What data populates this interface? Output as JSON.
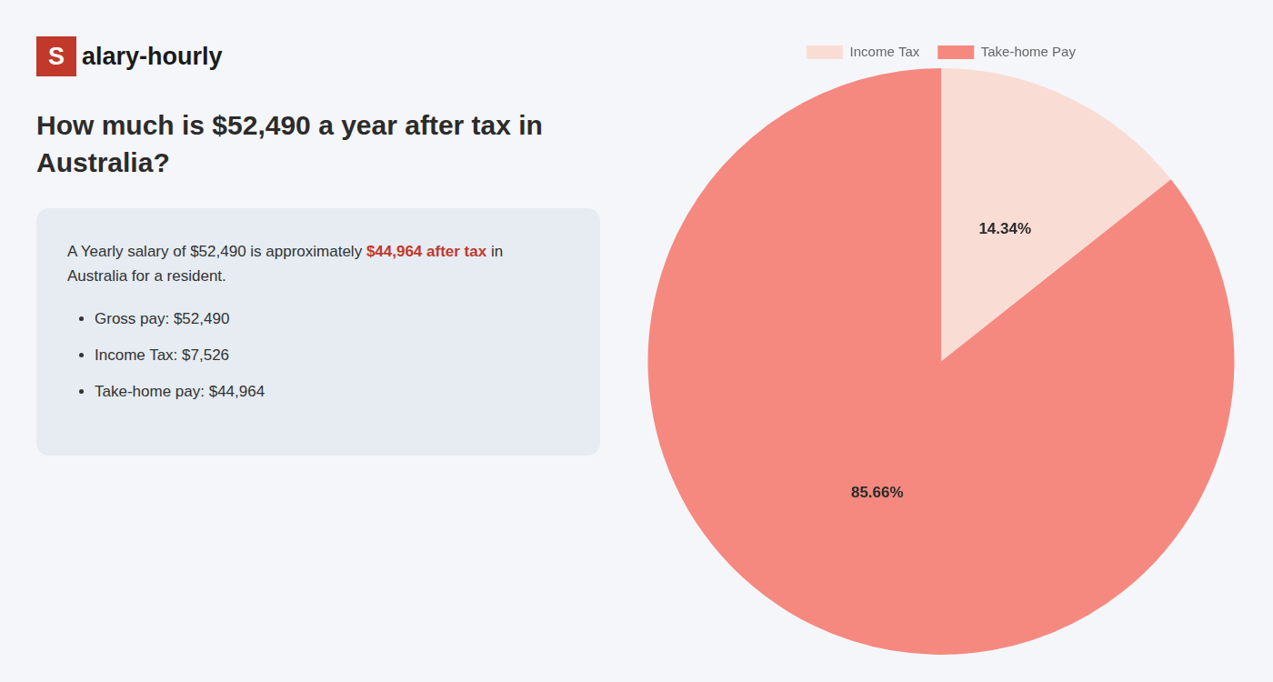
{
  "chart_data": {
    "type": "pie",
    "logo": {
      "mark": "S",
      "text": "alary-hourly",
      "color": "#c0392b"
    },
    "title": [
      "How much is $52,490 a year after tax in",
      "Australia?"
    ],
    "annotations": [
      [
        {
          "text": "A Yearly salary of $52,490 is approximately "
        },
        {
          "text": "$44,964 after tax",
          "color": "#c0392b"
        },
        {
          "text": " in"
        }
      ],
      [
        {
          "text": "Australia for a resident."
        }
      ]
    ],
    "bullets": [
      "Gross pay: $52,490",
      "Income Tax: $7,526",
      "Take-home pay: $44,964"
    ],
    "categories": [
      "Income Tax",
      "Take-home Pay"
    ],
    "values": [
      14.34,
      85.66
    ],
    "value_labels": [
      "14.34%",
      "85.66%"
    ],
    "colors": [
      "#f9ddd5",
      "#f5897f"
    ],
    "data_labels": true,
    "legend": "top"
  }
}
